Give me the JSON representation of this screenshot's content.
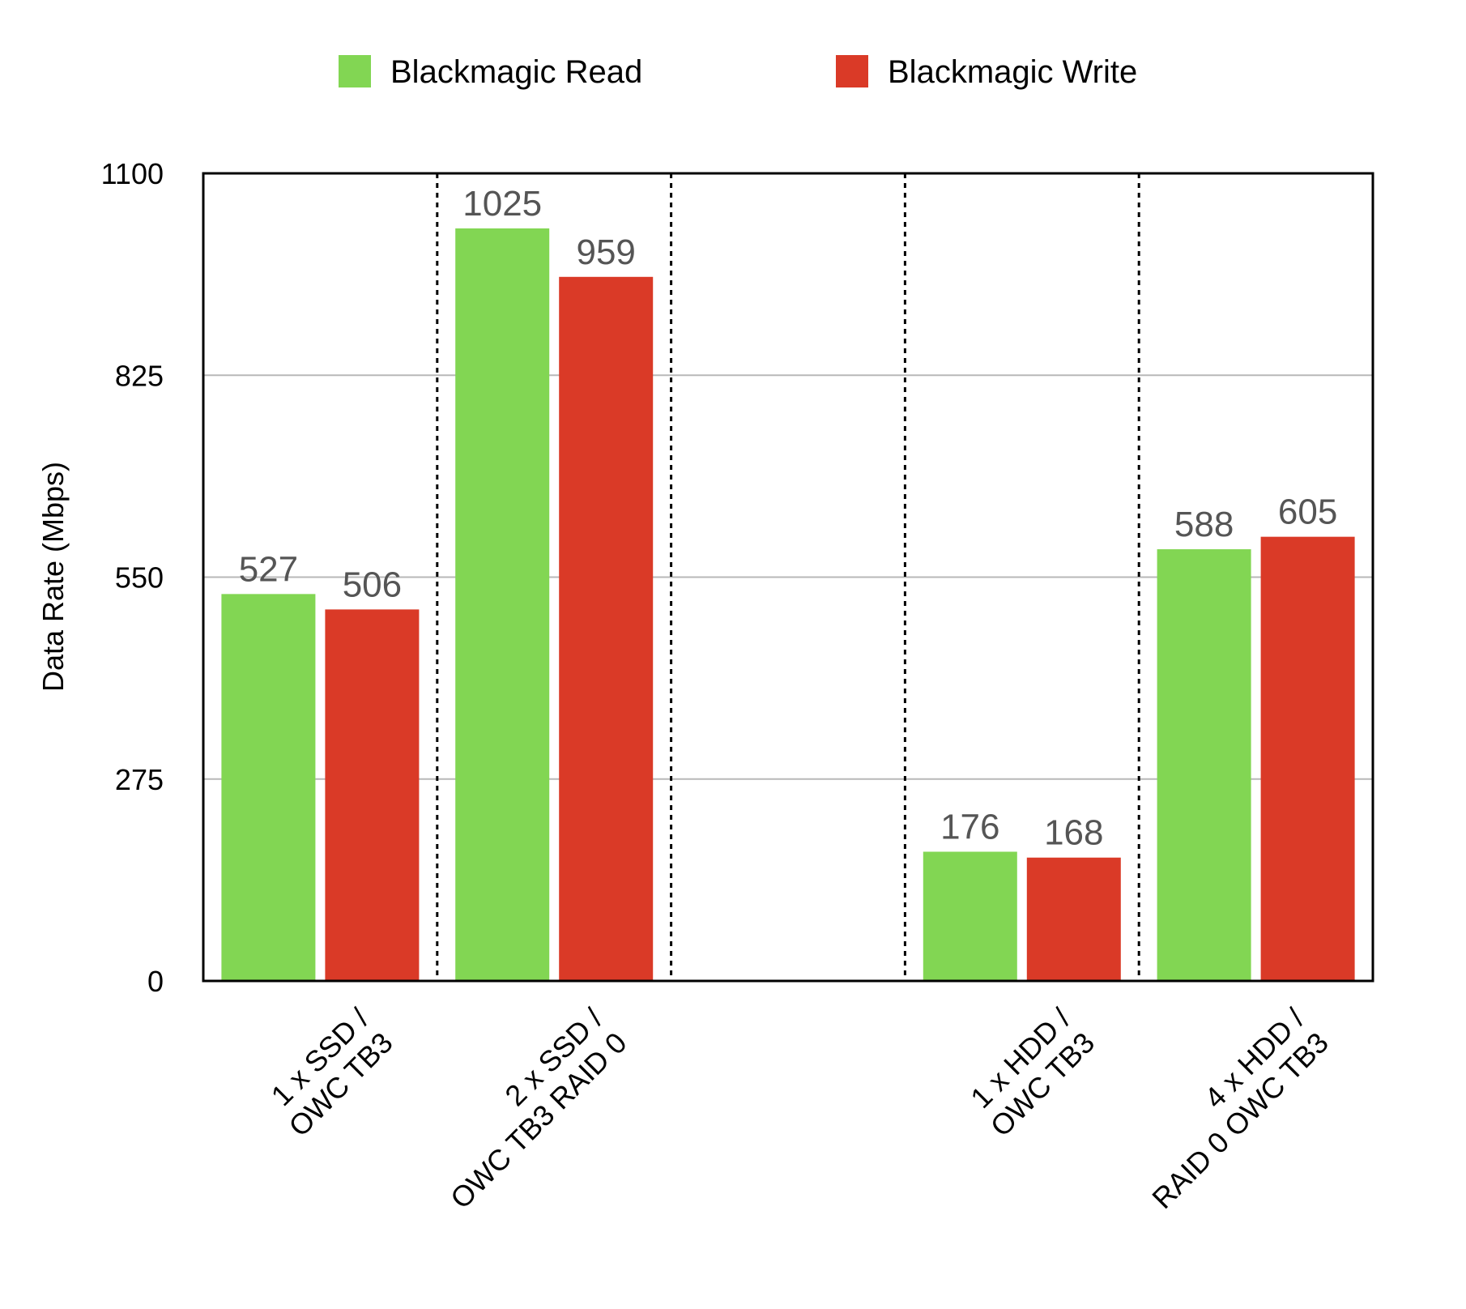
{
  "chart_data": {
    "type": "bar",
    "categories": [
      [
        "1 x SSD /",
        "OWC TB3"
      ],
      [
        "2 x SSD /",
        "OWC TB3 RAID 0"
      ],
      [
        "",
        ""
      ],
      [
        "1 x HDD /",
        "OWC TB3"
      ],
      [
        "4 x HDD /",
        "RAID 0 OWC TB3"
      ]
    ],
    "series": [
      {
        "name": "Blackmagic Read",
        "color": "#82d653",
        "values": [
          527,
          1025,
          null,
          176,
          588
        ]
      },
      {
        "name": "Blackmagic Write",
        "color": "#da3a27",
        "values": [
          506,
          959,
          null,
          168,
          605
        ]
      }
    ],
    "ylabel": "Data Rate (Mbps)",
    "xlabel": "",
    "ylim": [
      0,
      1100
    ],
    "yticks": [
      0,
      275,
      550,
      825,
      1100
    ],
    "grid": true,
    "legend_position": "top-center"
  }
}
